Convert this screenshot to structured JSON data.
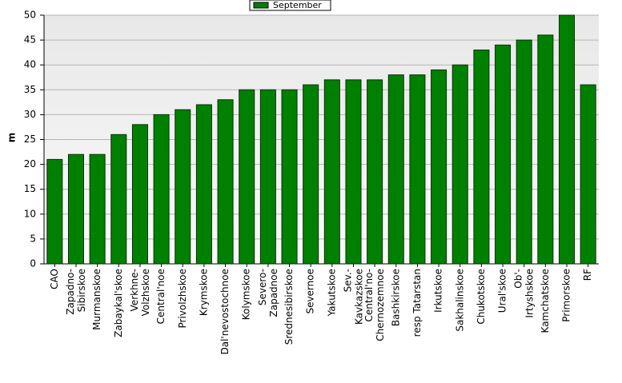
{
  "chart_data": {
    "type": "bar",
    "y_label": "m",
    "categories": [
      "CAO",
      "Zapadno-Sibirskoe",
      "Murmanskoe",
      "Zabaykal'skoe",
      "Verkhne-Volzhskoe",
      "Central'noe",
      "Privolzhskoe",
      "Krymskoe",
      "Dal'nevostochnoe",
      "Kolymskoe",
      "Severo-Zapadnoe",
      "Srednesibirskoe",
      "Severnoe",
      "Yakutskoe",
      "Sev.-Kavkazskoe",
      "Central'no-Chernozemnoe",
      "Bashkirskoe",
      "resp Tatarstan",
      "Irkutskoe",
      "Sakhalinskoe",
      "Chukotskoe",
      "Ural'skoe",
      "Ob'-Irtyshskoe",
      "Kamchatskoe",
      "Primorskoe",
      "RF"
    ],
    "series": [
      {
        "name": "September",
        "color": "#008000",
        "values": [
          21,
          22,
          22,
          26,
          28,
          30,
          31,
          32,
          33,
          35,
          35,
          35,
          36,
          37,
          37,
          37,
          38,
          38,
          39,
          40,
          43,
          44,
          45,
          46,
          50,
          36
        ]
      }
    ],
    "ylim": [
      0,
      50
    ],
    "yticks": [
      0,
      5,
      10,
      15,
      20,
      25,
      30,
      35,
      40,
      45,
      50
    ],
    "grid": true
  }
}
